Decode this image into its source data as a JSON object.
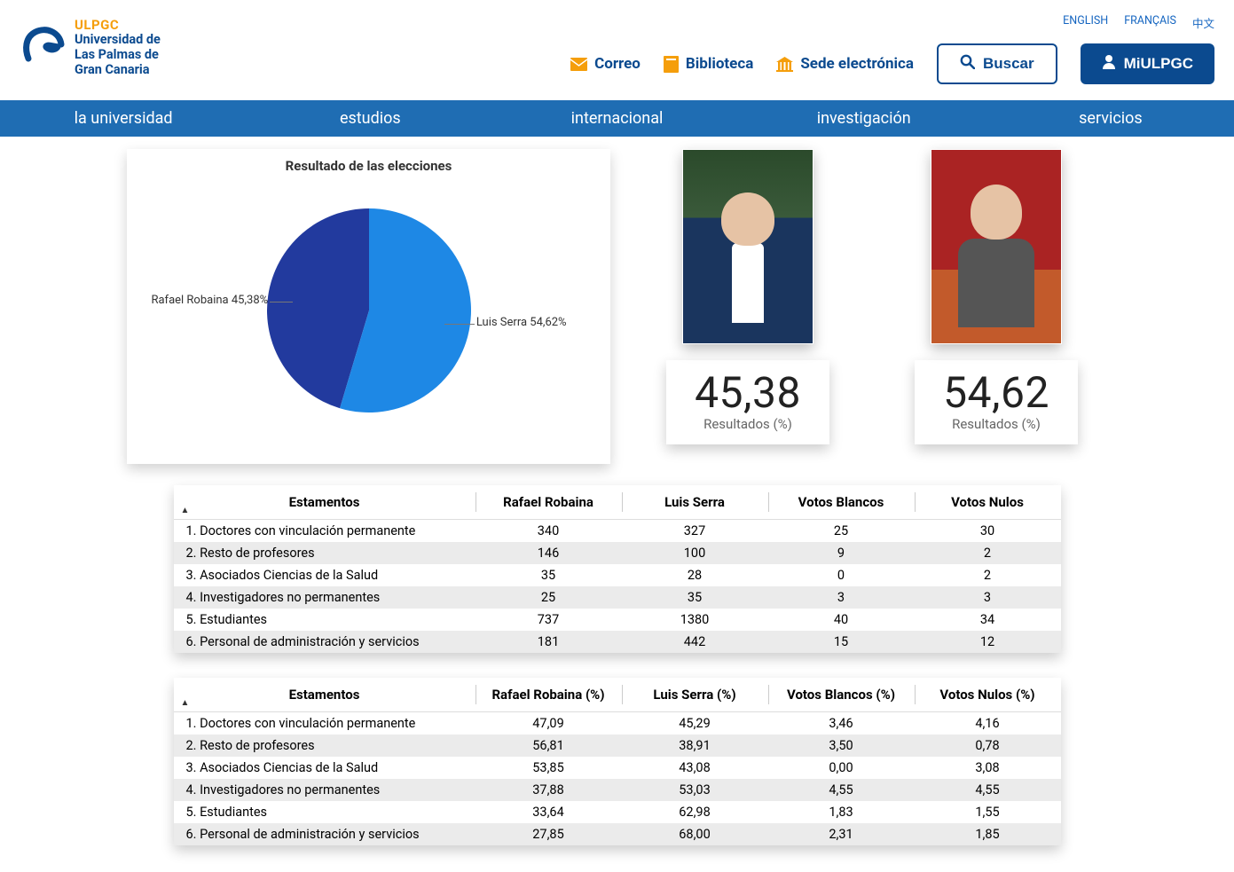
{
  "header": {
    "logo": {
      "line1": "ULPGC",
      "line2": "Universidad de",
      "line3": "Las Palmas de",
      "line4": "Gran Canaria"
    },
    "lang": [
      "ENGLISH",
      "FRANÇAIS",
      "中文"
    ],
    "links": {
      "correo": "Correo",
      "biblioteca": "Biblioteca",
      "sede": "Sede electrónica"
    },
    "search": "Buscar",
    "miulpgc": "MiULPGC"
  },
  "nav": [
    "la universidad",
    "estudios",
    "internacional",
    "investigación",
    "servicios"
  ],
  "chart": {
    "title": "Resultado de las elecciones",
    "type": "pie",
    "slices": [
      {
        "label": "Rafael Robaina 45,38%",
        "value": 45.38,
        "color": "#223a9e"
      },
      {
        "label": "Luis Serra 54,62%",
        "value": 54.62,
        "color": "#1e88e5"
      }
    ],
    "radius": 115,
    "background_color": "#ffffff",
    "label_fontsize": 13
  },
  "candidates": [
    {
      "percent": "45,38",
      "sub": "Resultados (%)"
    },
    {
      "percent": "54,62",
      "sub": "Resultados (%)"
    }
  ],
  "table_votes": {
    "columns": [
      "Estamentos",
      "Rafael Robaina",
      "Luis Serra",
      "Votos Blancos",
      "Votos Nulos"
    ],
    "rows": [
      [
        "1. Doctores con vinculación permanente",
        "340",
        "327",
        "25",
        "30"
      ],
      [
        "2. Resto de profesores",
        "146",
        "100",
        "9",
        "2"
      ],
      [
        "3. Asociados Ciencias de la Salud",
        "35",
        "28",
        "0",
        "2"
      ],
      [
        "4. Investigadores no permanentes",
        "25",
        "35",
        "3",
        "3"
      ],
      [
        "5. Estudiantes",
        "737",
        "1380",
        "40",
        "34"
      ],
      [
        "6. Personal de administración y servicios",
        "181",
        "442",
        "15",
        "12"
      ]
    ]
  },
  "table_pct": {
    "columns": [
      "Estamentos",
      "Rafael Robaina (%)",
      "Luis Serra (%)",
      "Votos Blancos (%)",
      "Votos Nulos (%)"
    ],
    "rows": [
      [
        "1. Doctores con vinculación permanente",
        "47,09",
        "45,29",
        "3,46",
        "4,16"
      ],
      [
        "2. Resto de profesores",
        "56,81",
        "38,91",
        "3,50",
        "0,78"
      ],
      [
        "3. Asociados Ciencias de la Salud",
        "53,85",
        "43,08",
        "0,00",
        "3,08"
      ],
      [
        "4. Investigadores no permanentes",
        "37,88",
        "53,03",
        "4,55",
        "4,55"
      ],
      [
        "5. Estudiantes",
        "33,64",
        "62,98",
        "1,83",
        "1,55"
      ],
      [
        "6. Personal de administración y servicios",
        "27,85",
        "68,00",
        "2,31",
        "1,85"
      ]
    ]
  },
  "colors": {
    "brand_blue": "#0b4a8f",
    "brand_orange": "#f59e0b",
    "nav_blue": "#1f6db3"
  }
}
